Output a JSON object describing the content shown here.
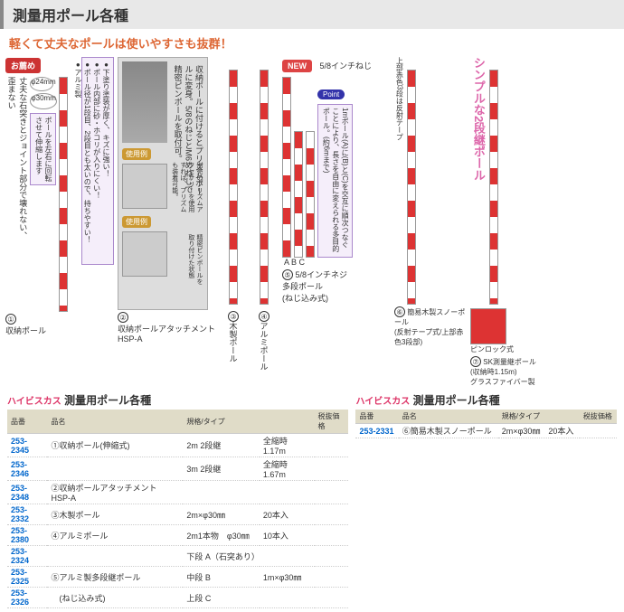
{
  "header": {
    "title": "測量用ポール各種"
  },
  "subtitle": "軽くて丈夫なポールは使いやすさも抜群！",
  "badges": {
    "recommend": "お薦め",
    "new": "NEW",
    "point": "Point",
    "use": "使用例"
  },
  "topnote": "5/8インチねじ",
  "pinkTitle": "シンプルな2段継ポール",
  "products": {
    "p1": {
      "num": "①",
      "name": "収納ポール",
      "blurb1": "丈夫な石突きとジョイント部分で壊れない、歪まない",
      "blurb2": "●下塗り塗装が厚く、キズに強い！\n●ポール内部に砂・ホコリが入りにくい！\n●ポール径が1段目、2段目とも太いので、持ちやすい！\n●アルミ製",
      "dia1": "φ24mm",
      "dia2": "φ30mm",
      "rot": "ポールを左右に回転させて伸縮します"
    },
    "p2": {
      "num": "②",
      "name": "収納ポールアタッチメント\nHSP-A",
      "note1": "収納ポールに付けるとプリズムポールに変身。5/8のねじとM6めねじで精密ピンポールを取付可。",
      "note2": "別売のプリズムアクセサリーを使用すれば、プリズムも装着可能。",
      "note3": "精密ピンポールを取り付けた状態"
    },
    "p3": {
      "num": "③",
      "name": "木製ポール"
    },
    "p4": {
      "num": "④",
      "name": "アルミポール"
    },
    "p5": {
      "num": "⑤",
      "name": "5/8インチネジ\n多段ポール\n(ねじ込み式)",
      "point": "1mポール(A)に(B)と(C)を交互に順次つなぐことにより、長さを自由に変えられる多目的ポール。(約6mまで)",
      "abc": "A  B  C"
    },
    "p6": {
      "num": "⑥",
      "name": "簡易木製スノーポール\n(反射テープ式/上部赤色3段部)",
      "note": "上部赤色3段は反射テープ"
    },
    "p7": {
      "num": "⑦",
      "name": "SK測量継ポール\n(収納時1.15m)\nグラスファイバー製",
      "lock": "ピンロック式"
    }
  },
  "tableTitle1": "測量用ポール各種",
  "tableTitle2": "測量用ポール各種",
  "brand": "ハイビスカス",
  "cols": {
    "code": "品番",
    "name": "品名",
    "spec": "規格/タイプ",
    "price": "税抜価格"
  },
  "rows1": [
    {
      "code": "253-2345",
      "name": "①収納ポール(伸縮式)",
      "spec": "2m 2段継",
      "ext": "全縮時 1.17m"
    },
    {
      "code": "253-2346",
      "name": "",
      "spec": "3m 2段継",
      "ext": "全縮時 1.67m"
    },
    {
      "code": "253-2348",
      "name": "②収納ポールアタッチメント　HSP-A",
      "spec": "",
      "ext": ""
    },
    {
      "code": "253-2332",
      "name": "③木製ポール",
      "spec": "2m×φ30㎜",
      "ext": "20本入"
    },
    {
      "code": "253-2380",
      "name": "④アルミポール",
      "spec": "2m1本物　φ30㎜",
      "ext": "10本入"
    },
    {
      "code": "253-2324",
      "name": "",
      "spec": "下段 A（石突あり）",
      "ext": ""
    },
    {
      "code": "253-2325",
      "name": "⑤アルミ製多段継ポール",
      "spec": "中段 B",
      "ext": "1m×φ30㎜"
    },
    {
      "code": "253-2326",
      "name": "　(ねじ込み式)",
      "spec": "上段 C",
      "ext": ""
    }
  ],
  "rows2": [
    {
      "code": "253-2331",
      "name": "⑥簡易木製スノーポール",
      "spec": "2m×φ30㎜　20本入"
    }
  ],
  "colors": {
    "accent": "#d63",
    "code": "#0066cc",
    "pink": "#d36"
  }
}
